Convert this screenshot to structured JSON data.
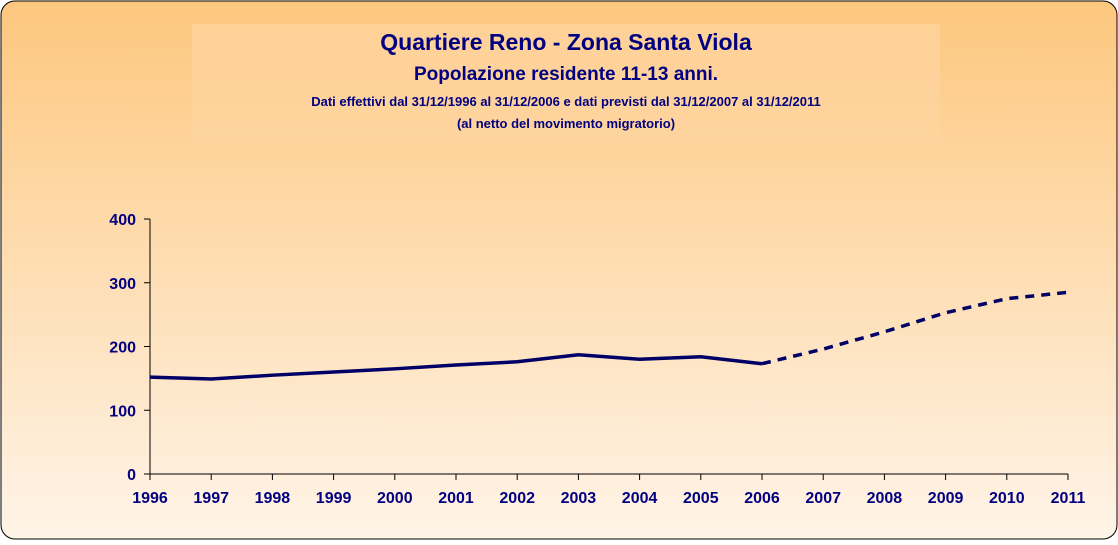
{
  "chart_data": {
    "type": "line",
    "title": "Quartiere Reno - Zona Santa Viola",
    "subtitle": "Popolazione residente 11-13 anni.",
    "notes": [
      "Dati effettivi dal 31/12/1996 al 31/12/2006 e dati previsti dal 31/12/2007 al 31/12/2011",
      "(al netto del movimento migratorio)"
    ],
    "categories": [
      "1996",
      "1997",
      "1998",
      "1999",
      "2000",
      "2001",
      "2002",
      "2003",
      "2004",
      "2005",
      "2006",
      "2007",
      "2008",
      "2009",
      "2010",
      "2011"
    ],
    "series": [
      {
        "color": "#000066",
        "dash": false,
        "values": [
          152,
          149,
          155,
          160,
          165,
          171,
          176,
          187,
          180,
          184,
          173,
          null,
          null,
          null,
          null,
          null
        ]
      },
      {
        "color": "#000066",
        "dash": true,
        "values": [
          null,
          null,
          null,
          null,
          null,
          null,
          null,
          null,
          null,
          null,
          173,
          196,
          223,
          253,
          275,
          285
        ]
      }
    ],
    "ylim": [
      0,
      400
    ],
    "yticks": [
      0,
      100,
      200,
      300,
      400
    ],
    "grid": false
  }
}
